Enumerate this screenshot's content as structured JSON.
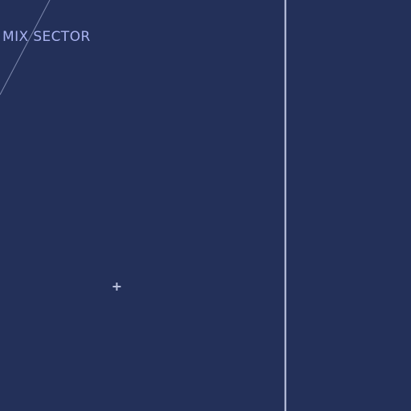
{
  "sector": {
    "label": "MIX SECTOR"
  },
  "colors": {
    "background": "#233059",
    "boundary_line": "#c6cde8",
    "airway_line": "#7d88ad",
    "label_text": "#a9b3f0",
    "marker": "#b9c0dc"
  },
  "icons": {
    "marker": "plus-cross-icon"
  }
}
